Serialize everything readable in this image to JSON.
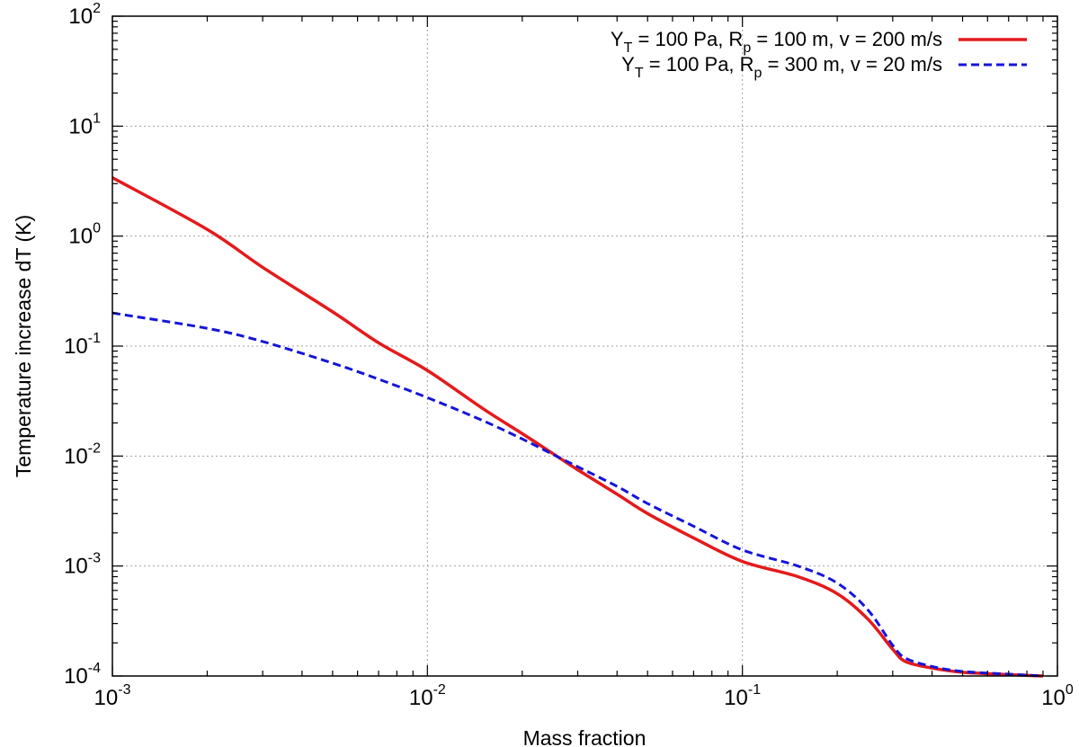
{
  "chart_data": {
    "type": "line",
    "xscale": "log",
    "yscale": "log",
    "xlim": [
      0.001,
      1
    ],
    "ylim": [
      0.0001,
      100
    ],
    "xlabel": "Mass fraction",
    "ylabel": "Temperature increase dT (K)",
    "grid": true,
    "legend_position": "top-right",
    "x_ticks": [
      {
        "base": "10",
        "exp": "-3"
      },
      {
        "base": "10",
        "exp": "-2"
      },
      {
        "base": "10",
        "exp": "-1"
      },
      {
        "base": "10",
        "exp": "0"
      }
    ],
    "y_ticks": [
      {
        "base": "10",
        "exp": "-4"
      },
      {
        "base": "10",
        "exp": "-3"
      },
      {
        "base": "10",
        "exp": "-2"
      },
      {
        "base": "10",
        "exp": "-1"
      },
      {
        "base": "10",
        "exp": "0"
      },
      {
        "base": "10",
        "exp": "1"
      },
      {
        "base": "10",
        "exp": "2"
      }
    ],
    "series": [
      {
        "name": "Y_T = 100 Pa, R_p = 100 m, v = 200 m/s",
        "legend_parts": [
          {
            "t": "Y",
            "sub": false
          },
          {
            "t": "T",
            "sub": true
          },
          {
            "t": " = 100 Pa, R",
            "sub": false
          },
          {
            "t": "p",
            "sub": true
          },
          {
            "t": " = 100 m, v = 200 m/s",
            "sub": false
          }
        ],
        "color": "#e41a1c",
        "dash": "solid",
        "x": [
          0.001,
          0.002,
          0.003,
          0.005,
          0.007,
          0.01,
          0.015,
          0.02,
          0.026,
          0.03,
          0.04,
          0.05,
          0.07,
          0.1,
          0.15,
          0.2,
          0.25,
          0.3,
          0.33,
          0.4,
          0.5,
          0.7,
          0.9
        ],
        "y": [
          3.4,
          1.15,
          0.52,
          0.205,
          0.107,
          0.06,
          0.027,
          0.016,
          0.0098,
          0.0075,
          0.0045,
          0.003,
          0.0018,
          0.0011,
          0.0008,
          0.00056,
          0.00033,
          0.000175,
          0.000135,
          0.000118,
          0.000108,
          0.000103,
          0.0001
        ]
      },
      {
        "name": "Y_T = 100 Pa, R_p = 300 m, v = 20 m/s",
        "legend_parts": [
          {
            "t": "Y",
            "sub": false
          },
          {
            "t": "T",
            "sub": true
          },
          {
            "t": " = 100 Pa, R",
            "sub": false
          },
          {
            "t": "p",
            "sub": true
          },
          {
            "t": " = 300 m, v = 20 m/s",
            "sub": false
          }
        ],
        "color": "#1515d8",
        "dash": "dashed",
        "x": [
          0.001,
          0.002,
          0.003,
          0.005,
          0.007,
          0.01,
          0.015,
          0.02,
          0.026,
          0.03,
          0.04,
          0.05,
          0.07,
          0.1,
          0.15,
          0.2,
          0.25,
          0.3,
          0.33,
          0.4,
          0.5,
          0.7,
          0.9
        ],
        "y": [
          0.2,
          0.145,
          0.11,
          0.07,
          0.05,
          0.034,
          0.021,
          0.0143,
          0.0098,
          0.008,
          0.0053,
          0.0037,
          0.0023,
          0.0014,
          0.001,
          0.0007,
          0.0004,
          0.00019,
          0.000145,
          0.000122,
          0.00011,
          0.000104,
          0.0001
        ]
      }
    ]
  }
}
